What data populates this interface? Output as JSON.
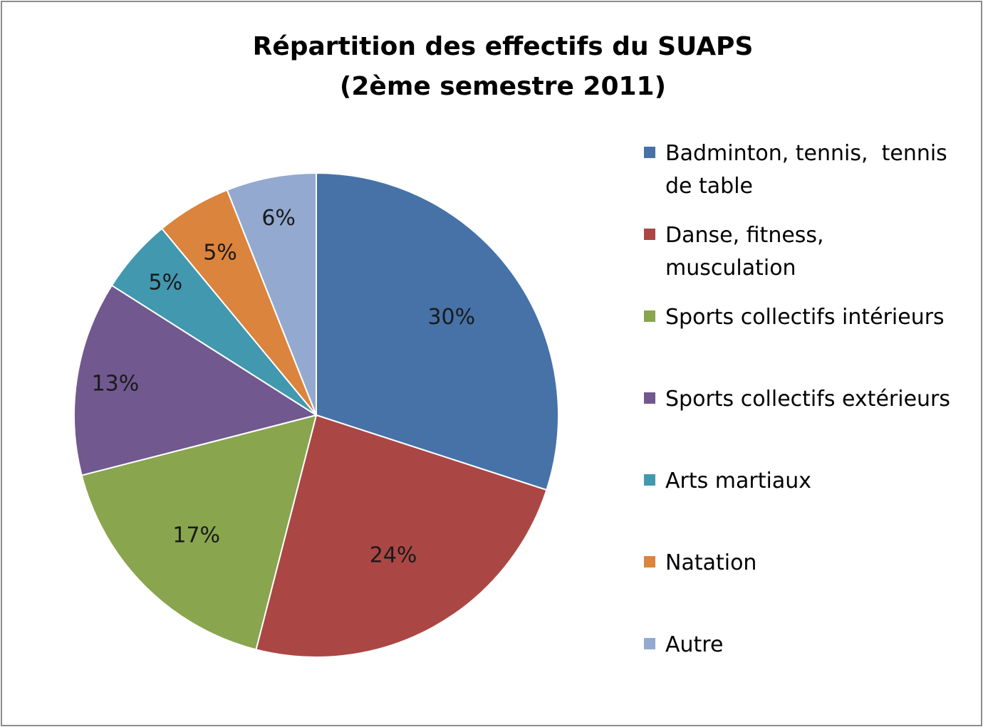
{
  "chart_data": {
    "type": "pie",
    "title": "Répartition des effectifs du SUAPS",
    "subtitle": "(2ème semestre 2011)",
    "categories": [
      "Badminton, tennis,  tennis de table",
      "Danse, fitness, musculation",
      "Sports collectifs intérieurs",
      "Sports collectifs extérieurs",
      "Arts martiaux",
      "Natation",
      "Autre"
    ],
    "legend_lines": [
      [
        "Badminton, tennis,  tennis",
        "de table"
      ],
      [
        "Danse, fitness,",
        "musculation"
      ],
      [
        "Sports collectifs intérieurs"
      ],
      [
        "Sports collectifs extérieurs"
      ],
      [
        "Arts martiaux"
      ],
      [
        "Natation"
      ],
      [
        "Autre"
      ]
    ],
    "values": [
      30,
      24,
      17,
      13,
      5,
      5,
      6
    ],
    "data_labels": [
      "30%",
      "24%",
      "17%",
      "13%",
      "5%",
      "5%",
      "6%"
    ],
    "colors": [
      "#4672a8",
      "#aa4744",
      "#89a54e",
      "#71588f",
      "#4198af",
      "#db843d",
      "#93a9cf"
    ],
    "start_angle_deg": 0,
    "direction": "clockwise",
    "legend_position": "right"
  }
}
